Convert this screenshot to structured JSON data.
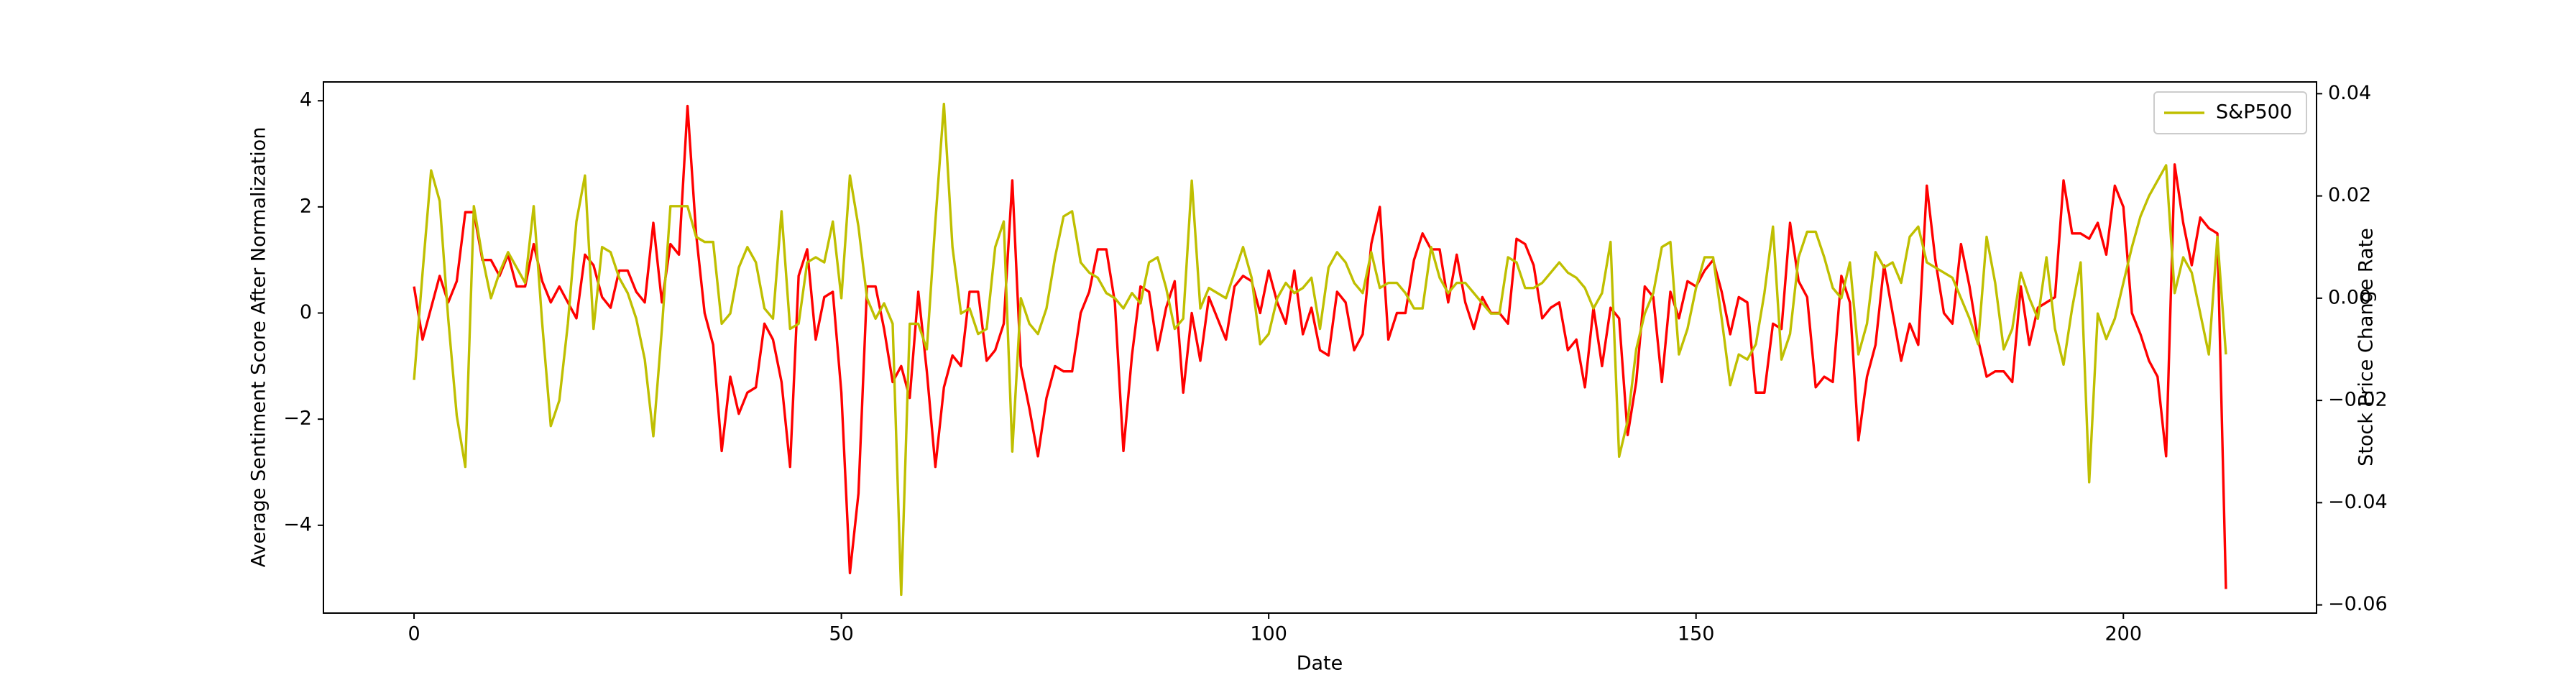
{
  "chart_data": {
    "type": "line",
    "xlabel": "Date",
    "ylabel": "Average Sentiment Score After Normalization",
    "y2label": "Stock Price Change Rate",
    "x": [
      0,
      1,
      2,
      3,
      4,
      5,
      6,
      7,
      8,
      9,
      10,
      11,
      12,
      13,
      14,
      15,
      16,
      17,
      18,
      19,
      20,
      21,
      22,
      23,
      24,
      25,
      26,
      27,
      28,
      29,
      30,
      31,
      32,
      33,
      34,
      35,
      36,
      37,
      38,
      39,
      40,
      41,
      42,
      43,
      44,
      45,
      46,
      47,
      48,
      49,
      50,
      51,
      52,
      53,
      54,
      55,
      56,
      57,
      58,
      59,
      60,
      61,
      62,
      63,
      64,
      65,
      66,
      67,
      68,
      69,
      70,
      71,
      72,
      73,
      74,
      75,
      76,
      77,
      78,
      79,
      80,
      81,
      82,
      83,
      84,
      85,
      86,
      87,
      88,
      89,
      90,
      91,
      92,
      93,
      94,
      95,
      96,
      97,
      98,
      99,
      100,
      101,
      102,
      103,
      104,
      105,
      106,
      107,
      108,
      109,
      110,
      111,
      112,
      113,
      114,
      115,
      116,
      117,
      118,
      119,
      120,
      121,
      122,
      123,
      124,
      125,
      126,
      127,
      128,
      129,
      130,
      131,
      132,
      133,
      134,
      135,
      136,
      137,
      138,
      139,
      140,
      141,
      142,
      143,
      144,
      145,
      146,
      147,
      148,
      149,
      150,
      151,
      152,
      153,
      154,
      155,
      156,
      157,
      158,
      159,
      160,
      161,
      162,
      163,
      164,
      165,
      166,
      167,
      168,
      169,
      170,
      171,
      172,
      173,
      174,
      175,
      176,
      177,
      178,
      179,
      180,
      181,
      182,
      183,
      184,
      185,
      186,
      187,
      188,
      189,
      190,
      191,
      192,
      193,
      194,
      195,
      196,
      197,
      198,
      199,
      200,
      201,
      202,
      203,
      204,
      205,
      206,
      207,
      208,
      209,
      210,
      211,
      212
    ],
    "series": [
      {
        "color": "#ff0000",
        "axis": "y",
        "values": [
          0.5,
          -0.5,
          0.1,
          0.7,
          0.2,
          0.6,
          1.9,
          1.9,
          1.0,
          1.0,
          0.7,
          1.1,
          0.5,
          0.5,
          1.3,
          0.6,
          0.2,
          0.5,
          0.2,
          -0.1,
          1.1,
          0.9,
          0.3,
          0.1,
          0.8,
          0.8,
          0.4,
          0.2,
          1.7,
          0.2,
          1.3,
          1.1,
          3.9,
          1.5,
          0.0,
          -0.6,
          -2.6,
          -1.2,
          -1.9,
          -1.5,
          -1.4,
          -0.2,
          -0.5,
          -1.3,
          -2.9,
          0.7,
          1.2,
          -0.5,
          0.3,
          0.4,
          -1.5,
          -4.9,
          -3.4,
          0.5,
          0.5,
          -0.3,
          -1.3,
          -1.0,
          -1.6,
          0.4,
          -1.1,
          -2.9,
          -1.4,
          -0.8,
          -1.0,
          0.4,
          0.4,
          -0.9,
          -0.7,
          -0.2,
          2.5,
          -1.0,
          -1.8,
          -2.7,
          -1.6,
          -1.0,
          -1.1,
          -1.1,
          0.0,
          0.4,
          1.2,
          1.2,
          0.2,
          -2.6,
          -0.8,
          0.5,
          0.4,
          -0.7,
          0.1,
          0.6,
          -1.5,
          0.0,
          -0.9,
          0.3,
          -0.1,
          -0.5,
          0.5,
          0.7,
          0.6,
          0.0,
          0.8,
          0.2,
          -0.2,
          0.8,
          -0.4,
          0.1,
          -0.7,
          -0.8,
          0.4,
          0.2,
          -0.7,
          -0.4,
          1.3,
          2.0,
          -0.5,
          0.0,
          0.0,
          1.0,
          1.5,
          1.2,
          1.2,
          0.2,
          1.1,
          0.2,
          -0.3,
          0.3,
          0.0,
          0.0,
          -0.2,
          1.4,
          1.3,
          0.9,
          -0.1,
          0.1,
          0.2,
          -0.7,
          -0.5,
          -1.4,
          0.1,
          -1.0,
          0.1,
          -0.1,
          -2.3,
          -1.3,
          0.5,
          0.3,
          -1.3,
          0.4,
          -0.1,
          0.6,
          0.5,
          0.8,
          1.0,
          0.4,
          -0.4,
          0.3,
          0.2,
          -1.5,
          -1.5,
          -0.2,
          -0.3,
          1.7,
          0.6,
          0.3,
          -1.4,
          -1.2,
          -1.3,
          0.7,
          0.2,
          -2.4,
          -1.2,
          -0.6,
          0.9,
          0.0,
          -0.9,
          -0.2,
          -0.6,
          2.4,
          1.0,
          0.0,
          -0.2,
          1.3,
          0.5,
          -0.5,
          -1.2,
          -1.1,
          -1.1,
          -1.3,
          0.5,
          -0.6,
          0.1,
          0.2,
          0.3,
          2.5,
          1.5,
          1.5,
          1.4,
          1.7,
          1.1,
          2.4,
          2.0,
          0.0,
          -0.4,
          -0.9,
          -1.2,
          -2.7,
          2.8,
          1.7,
          0.9,
          1.8,
          1.6,
          1.5,
          -5.2
        ]
      },
      {
        "name": "S&P500",
        "color": "#bfbf00",
        "axis": "y2",
        "values": [
          -0.016,
          0.005,
          0.025,
          0.019,
          -0.004,
          -0.023,
          -0.033,
          0.018,
          0.008,
          0.0,
          0.005,
          0.009,
          0.006,
          0.003,
          0.018,
          -0.005,
          -0.025,
          -0.02,
          -0.005,
          0.015,
          0.024,
          -0.006,
          0.01,
          0.009,
          0.004,
          0.001,
          -0.004,
          -0.012,
          -0.027,
          -0.006,
          0.018,
          0.018,
          0.018,
          0.012,
          0.011,
          0.011,
          -0.005,
          -0.003,
          0.006,
          0.01,
          0.007,
          -0.002,
          -0.004,
          0.017,
          -0.006,
          -0.005,
          0.007,
          0.008,
          0.007,
          0.015,
          0.0,
          0.024,
          0.014,
          0.0,
          -0.004,
          -0.001,
          -0.005,
          -0.058,
          -0.005,
          -0.005,
          -0.01,
          0.015,
          0.038,
          0.01,
          -0.003,
          -0.002,
          -0.007,
          -0.006,
          0.01,
          0.015,
          -0.03,
          0.0,
          -0.005,
          -0.007,
          -0.002,
          0.008,
          0.016,
          0.017,
          0.007,
          0.005,
          0.004,
          0.001,
          0.0,
          -0.002,
          0.001,
          -0.001,
          0.007,
          0.008,
          0.002,
          -0.006,
          -0.004,
          0.023,
          -0.002,
          0.002,
          0.001,
          0.0,
          0.005,
          0.01,
          0.004,
          -0.009,
          -0.007,
          0.0,
          0.003,
          0.001,
          0.002,
          0.004,
          -0.006,
          0.006,
          0.009,
          0.007,
          0.003,
          0.001,
          0.009,
          0.002,
          0.003,
          0.003,
          0.001,
          -0.002,
          -0.002,
          0.01,
          0.004,
          0.001,
          0.003,
          0.003,
          0.001,
          -0.001,
          -0.003,
          -0.003,
          0.008,
          0.007,
          0.002,
          0.002,
          0.003,
          0.005,
          0.007,
          0.005,
          0.004,
          0.002,
          -0.002,
          0.001,
          0.011,
          -0.031,
          -0.024,
          -0.01,
          -0.003,
          0.001,
          0.01,
          0.011,
          -0.011,
          -0.006,
          0.002,
          0.008,
          0.008,
          -0.004,
          -0.017,
          -0.011,
          -0.012,
          -0.009,
          0.001,
          0.014,
          -0.012,
          -0.007,
          0.008,
          0.013,
          0.013,
          0.008,
          0.002,
          0.0,
          0.007,
          -0.011,
          -0.005,
          0.009,
          0.006,
          0.007,
          0.003,
          0.012,
          0.014,
          0.007,
          0.006,
          0.005,
          0.004,
          0.0,
          -0.004,
          -0.009,
          0.012,
          0.003,
          -0.01,
          -0.006,
          0.005,
          0.0,
          -0.004,
          0.008,
          -0.006,
          -0.013,
          -0.002,
          0.007,
          -0.036,
          -0.003,
          -0.008,
          -0.004,
          0.003,
          0.01,
          0.016,
          0.02,
          0.023,
          0.026,
          0.001,
          0.008,
          0.005,
          -0.003,
          -0.011,
          0.012,
          -0.011
        ]
      }
    ],
    "xlim": [
      -10.6,
      222.6
    ],
    "xticks": [
      0,
      50,
      100,
      150,
      200
    ],
    "ylim": [
      -5.655,
      4.355
    ],
    "yticks": [
      {
        "value": -4,
        "label": "−4"
      },
      {
        "value": -2,
        "label": "−2"
      },
      0,
      2,
      4
    ],
    "y2lim": [
      -0.0616,
      0.0423
    ],
    "y2ticks": [
      {
        "value": -0.06,
        "label": "−0.06"
      },
      {
        "value": -0.04,
        "label": "−0.04"
      },
      {
        "value": -0.02,
        "label": "−0.02"
      },
      {
        "value": 0,
        "label": "0.00"
      },
      {
        "value": 0.02,
        "label": "0.02"
      },
      {
        "value": 0.04,
        "label": "0.04"
      }
    ],
    "legend": "upper right"
  }
}
